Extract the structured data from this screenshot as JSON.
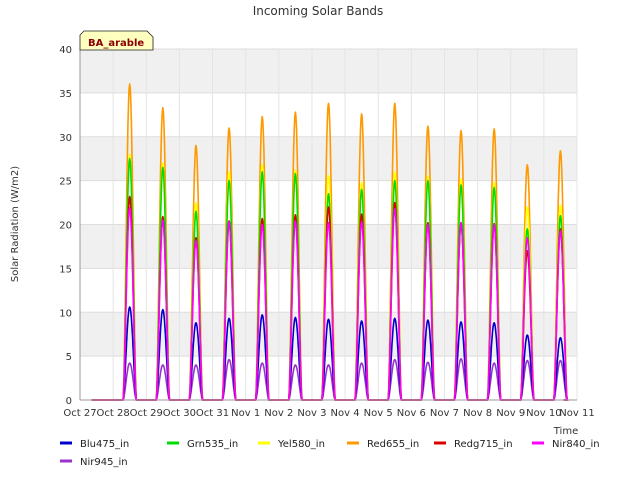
{
  "chart_data": {
    "type": "line",
    "title": "Incoming Solar Bands",
    "xlabel": "Time",
    "ylabel": "Solar Radiation (W/m2)",
    "badge": "BA_arable",
    "ylim": [
      0,
      40
    ],
    "yticks": [
      0,
      5,
      10,
      15,
      20,
      25,
      30,
      35,
      40
    ],
    "xticks": [
      "Oct 27",
      "Oct 28",
      "Oct 29",
      "Oct 30",
      "Oct 31",
      "Nov 1",
      "Nov 2",
      "Nov 3",
      "Nov 4",
      "Nov 5",
      "Nov 6",
      "Nov 7",
      "Nov 8",
      "Nov 9",
      "Nov 10",
      "Nov 11"
    ],
    "xlim_days": [
      0,
      15
    ],
    "grid": true,
    "legend_position": "bottom",
    "day_labels": [
      "Oct 28",
      "Oct 29",
      "Oct 30",
      "Oct 31",
      "Nov 1",
      "Nov 2",
      "Nov 3",
      "Nov 4",
      "Nov 5",
      "Nov 6",
      "Nov 7",
      "Nov 8",
      "Nov 9",
      "Nov 10"
    ],
    "peak_hour_fraction": 0.5,
    "series": [
      {
        "name": "Blu475_in",
        "color": "#0000cc",
        "daily_peaks": [
          10.6,
          10.3,
          8.8,
          9.3,
          9.7,
          9.4,
          9.2,
          9.0,
          9.3,
          9.1,
          8.9,
          8.8,
          7.4,
          7.1
        ]
      },
      {
        "name": "Grn535_in",
        "color": "#00dd00",
        "daily_peaks": [
          27.5,
          26.5,
          21.5,
          25.0,
          26.0,
          25.8,
          23.5,
          24.0,
          25.0,
          25.0,
          24.5,
          24.2,
          19.5,
          21.0
        ]
      },
      {
        "name": "Yel580_in",
        "color": "#ffff00",
        "daily_peaks": [
          28.0,
          27.0,
          22.5,
          26.0,
          26.8,
          26.2,
          25.6,
          24.8,
          26.0,
          25.5,
          25.2,
          24.8,
          22.0,
          22.2
        ]
      },
      {
        "name": "Red655_in",
        "color": "#ff9900",
        "daily_peaks": [
          36.0,
          33.3,
          29.0,
          31.0,
          32.3,
          32.8,
          33.8,
          32.6,
          33.8,
          31.2,
          30.7,
          30.9,
          26.8,
          28.4
        ]
      },
      {
        "name": "Redg715_in",
        "color": "#dd0000",
        "daily_peaks": [
          23.2,
          20.9,
          18.5,
          20.4,
          20.7,
          21.1,
          22.0,
          21.2,
          22.5,
          20.2,
          20.2,
          20.1,
          17.0,
          19.5
        ]
      },
      {
        "name": "Nir840_in",
        "color": "#ff00ff",
        "daily_peaks": [
          21.9,
          20.5,
          18.2,
          20.3,
          20.0,
          20.4,
          20.2,
          20.3,
          21.8,
          20.0,
          20.2,
          20.0,
          18.5,
          19.3
        ]
      },
      {
        "name": "Nir945_in",
        "color": "#9933cc",
        "daily_peaks": [
          4.2,
          4.0,
          4.0,
          4.6,
          4.2,
          4.0,
          4.0,
          4.2,
          4.6,
          4.3,
          4.7,
          4.2,
          4.5,
          4.5
        ]
      }
    ]
  }
}
